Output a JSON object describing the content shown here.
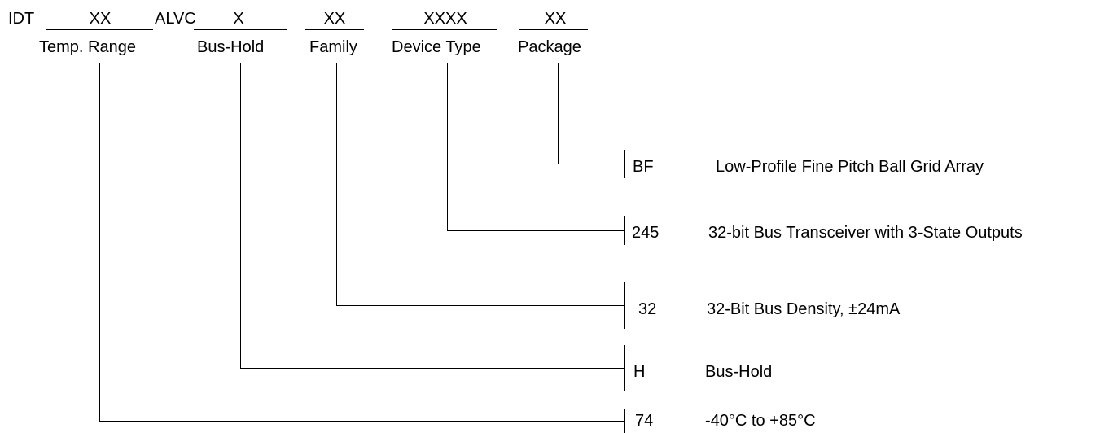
{
  "header": {
    "prefix": "IDT",
    "alvc": "ALVC",
    "temp_field": "XX",
    "bushold_field": "X",
    "family_field": "XX",
    "device_field": "XXXX",
    "package_field": "XX"
  },
  "labels": {
    "temp": "Temp. Range",
    "bushold": "Bus-Hold",
    "family": "Family",
    "device": "Device Type",
    "package": "Package"
  },
  "options": [
    {
      "code": "BF",
      "description": "Low-Profile Fine Pitch Ball Grid Array"
    },
    {
      "code": "245",
      "description": "32-bit Bus Transceiver with 3-State Outputs"
    },
    {
      "code": "32",
      "description": "32-Bit Bus Density, ±24mA"
    },
    {
      "code": "H",
      "description": "Bus-Hold"
    },
    {
      "code": "74",
      "description": "-40°C to +85°C"
    }
  ]
}
